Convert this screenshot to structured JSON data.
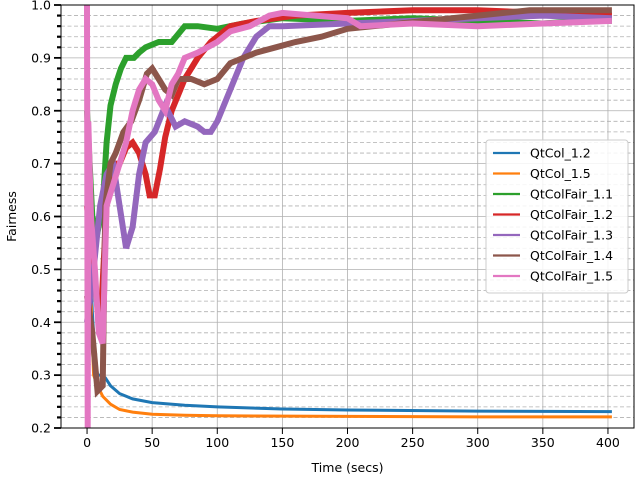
{
  "chart_data": {
    "type": "line",
    "title": "",
    "xlabel": "Time (secs)",
    "ylabel": "Fairness",
    "xlim": [
      -20,
      420
    ],
    "ylim": [
      0.2,
      1.0
    ],
    "xticks": [
      0,
      50,
      100,
      150,
      200,
      250,
      300,
      350,
      400
    ],
    "yticks": [
      0.2,
      0.3,
      0.4,
      0.5,
      0.6,
      0.7,
      0.8,
      0.9,
      1.0
    ],
    "yminor_step": 0.02,
    "grid": "major solid, minor dashed",
    "legend_position": "center-right",
    "series": [
      {
        "name": "QtCol_1.2",
        "color": "#1f77b4",
        "width": "thin",
        "points": [
          [
            0,
            0.7
          ],
          [
            2,
            0.55
          ],
          [
            4,
            0.42
          ],
          [
            6,
            0.34
          ],
          [
            8,
            0.3
          ],
          [
            10,
            0.3
          ],
          [
            14,
            0.295
          ],
          [
            18,
            0.28
          ],
          [
            25,
            0.265
          ],
          [
            35,
            0.255
          ],
          [
            50,
            0.248
          ],
          [
            75,
            0.243
          ],
          [
            100,
            0.24
          ],
          [
            150,
            0.236
          ],
          [
            200,
            0.234
          ],
          [
            300,
            0.232
          ],
          [
            403,
            0.231
          ]
        ]
      },
      {
        "name": "QtCol_1.5",
        "color": "#ff7f0e",
        "width": "thin",
        "points": [
          [
            0,
            0.66
          ],
          [
            3,
            0.44
          ],
          [
            5,
            0.3
          ],
          [
            8,
            0.28
          ],
          [
            12,
            0.26
          ],
          [
            18,
            0.245
          ],
          [
            25,
            0.235
          ],
          [
            35,
            0.23
          ],
          [
            50,
            0.226
          ],
          [
            75,
            0.224
          ],
          [
            100,
            0.223
          ],
          [
            200,
            0.222
          ],
          [
            300,
            0.221
          ],
          [
            403,
            0.221
          ]
        ]
      },
      {
        "name": "QtColFair_1.1",
        "color": "#2ca02c",
        "width": "thick",
        "points": [
          [
            0,
            0.8
          ],
          [
            4,
            0.6
          ],
          [
            8,
            0.57
          ],
          [
            12,
            0.62
          ],
          [
            15,
            0.74
          ],
          [
            18,
            0.81
          ],
          [
            22,
            0.85
          ],
          [
            26,
            0.88
          ],
          [
            30,
            0.9
          ],
          [
            36,
            0.9
          ],
          [
            40,
            0.91
          ],
          [
            45,
            0.92
          ],
          [
            55,
            0.93
          ],
          [
            65,
            0.93
          ],
          [
            70,
            0.945
          ],
          [
            75,
            0.96
          ],
          [
            85,
            0.96
          ],
          [
            100,
            0.955
          ],
          [
            120,
            0.965
          ],
          [
            150,
            0.975
          ],
          [
            200,
            0.97
          ],
          [
            250,
            0.975
          ],
          [
            300,
            0.97
          ],
          [
            350,
            0.965
          ],
          [
            380,
            0.97
          ],
          [
            403,
            0.97
          ]
        ]
      },
      {
        "name": "QtColFair_1.2",
        "color": "#d62728",
        "width": "thick",
        "points": [
          [
            0,
            0.62
          ],
          [
            5,
            0.5
          ],
          [
            10,
            0.38
          ],
          [
            15,
            0.62
          ],
          [
            20,
            0.7
          ],
          [
            25,
            0.7
          ],
          [
            30,
            0.73
          ],
          [
            35,
            0.74
          ],
          [
            40,
            0.72
          ],
          [
            45,
            0.68
          ],
          [
            48,
            0.64
          ],
          [
            52,
            0.64
          ],
          [
            56,
            0.69
          ],
          [
            60,
            0.75
          ],
          [
            65,
            0.8
          ],
          [
            75,
            0.86
          ],
          [
            85,
            0.9
          ],
          [
            95,
            0.93
          ],
          [
            110,
            0.96
          ],
          [
            130,
            0.97
          ],
          [
            160,
            0.98
          ],
          [
            200,
            0.985
          ],
          [
            250,
            0.99
          ],
          [
            300,
            0.99
          ],
          [
            350,
            0.985
          ],
          [
            403,
            0.98
          ]
        ]
      },
      {
        "name": "QtColFair_1.3",
        "color": "#9467bd",
        "width": "thick",
        "points": [
          [
            0,
            0.4
          ],
          [
            5,
            0.5
          ],
          [
            10,
            0.62
          ],
          [
            15,
            0.68
          ],
          [
            20,
            0.7
          ],
          [
            25,
            0.62
          ],
          [
            30,
            0.54
          ],
          [
            35,
            0.58
          ],
          [
            40,
            0.68
          ],
          [
            45,
            0.74
          ],
          [
            52,
            0.76
          ],
          [
            60,
            0.81
          ],
          [
            68,
            0.77
          ],
          [
            75,
            0.78
          ],
          [
            85,
            0.77
          ],
          [
            90,
            0.76
          ],
          [
            95,
            0.76
          ],
          [
            100,
            0.78
          ],
          [
            110,
            0.84
          ],
          [
            120,
            0.9
          ],
          [
            130,
            0.94
          ],
          [
            140,
            0.96
          ],
          [
            150,
            0.96
          ],
          [
            200,
            0.965
          ],
          [
            250,
            0.97
          ],
          [
            300,
            0.975
          ],
          [
            350,
            0.98
          ],
          [
            403,
            0.975
          ]
        ]
      },
      {
        "name": "QtColFair_1.4",
        "color": "#8c564b",
        "width": "thick",
        "points": [
          [
            0,
            0.45
          ],
          [
            4,
            0.38
          ],
          [
            8,
            0.27
          ],
          [
            12,
            0.28
          ],
          [
            14,
            0.62
          ],
          [
            18,
            0.7
          ],
          [
            22,
            0.72
          ],
          [
            28,
            0.76
          ],
          [
            34,
            0.78
          ],
          [
            40,
            0.82
          ],
          [
            46,
            0.87
          ],
          [
            50,
            0.88
          ],
          [
            55,
            0.86
          ],
          [
            60,
            0.84
          ],
          [
            65,
            0.83
          ],
          [
            70,
            0.86
          ],
          [
            80,
            0.86
          ],
          [
            90,
            0.85
          ],
          [
            100,
            0.86
          ],
          [
            110,
            0.89
          ],
          [
            120,
            0.9
          ],
          [
            130,
            0.91
          ],
          [
            145,
            0.92
          ],
          [
            160,
            0.93
          ],
          [
            180,
            0.94
          ],
          [
            200,
            0.955
          ],
          [
            220,
            0.96
          ],
          [
            240,
            0.965
          ],
          [
            260,
            0.97
          ],
          [
            300,
            0.98
          ],
          [
            340,
            0.99
          ],
          [
            403,
            0.99
          ]
        ]
      },
      {
        "name": "QtColFair_1.5",
        "color": "#e377c2",
        "width": "thick",
        "points": [
          [
            0,
            1.0
          ],
          [
            0.5,
            0.2
          ],
          [
            1,
            0.78
          ],
          [
            3,
            0.6
          ],
          [
            6,
            0.5
          ],
          [
            9,
            0.38
          ],
          [
            12,
            0.36
          ],
          [
            15,
            0.62
          ],
          [
            20,
            0.66
          ],
          [
            25,
            0.7
          ],
          [
            30,
            0.74
          ],
          [
            35,
            0.8
          ],
          [
            40,
            0.84
          ],
          [
            45,
            0.86
          ],
          [
            50,
            0.85
          ],
          [
            55,
            0.82
          ],
          [
            60,
            0.8
          ],
          [
            65,
            0.85
          ],
          [
            70,
            0.87
          ],
          [
            75,
            0.9
          ],
          [
            85,
            0.91
          ],
          [
            100,
            0.93
          ],
          [
            110,
            0.95
          ],
          [
            125,
            0.96
          ],
          [
            140,
            0.98
          ],
          [
            150,
            0.985
          ],
          [
            175,
            0.98
          ],
          [
            200,
            0.975
          ],
          [
            210,
            0.96
          ],
          [
            250,
            0.965
          ],
          [
            300,
            0.96
          ],
          [
            350,
            0.965
          ],
          [
            403,
            0.97
          ]
        ]
      }
    ]
  }
}
